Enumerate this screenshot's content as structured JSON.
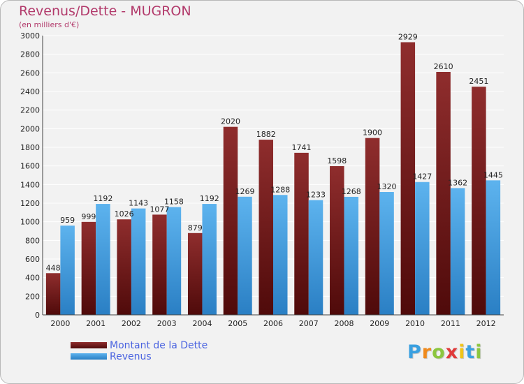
{
  "chart_data": {
    "type": "bar",
    "title": "Revenus/Dette - MUGRON",
    "subtitle": "(en milliers d'€)",
    "categories": [
      "2000",
      "2001",
      "2002",
      "2003",
      "2004",
      "2005",
      "2006",
      "2007",
      "2008",
      "2009",
      "2010",
      "2011",
      "2012"
    ],
    "series": [
      {
        "name": "Montant de la Dette",
        "color": "#7a1c1c",
        "values": [
          448,
          999,
          1026,
          1077,
          879,
          2020,
          1882,
          1741,
          1598,
          1900,
          2929,
          2610,
          2451
        ]
      },
      {
        "name": "Revenus",
        "color": "#3d9be0",
        "values": [
          959,
          1192,
          1143,
          1158,
          1192,
          1269,
          1288,
          1233,
          1268,
          1320,
          1427,
          1362,
          1445
        ]
      }
    ],
    "ylim": [
      0,
      3000
    ],
    "yticks": [
      0,
      200,
      400,
      600,
      800,
      1000,
      1200,
      1400,
      1600,
      1800,
      2000,
      2200,
      2400,
      2600,
      2800,
      3000
    ],
    "grid": true,
    "legend": "bottom-left"
  },
  "logo": {
    "letters": [
      "P",
      "r",
      "o",
      "x",
      "i",
      "t",
      "i"
    ],
    "colors": [
      "#3aa0e0",
      "#f08a1c",
      "#8cc63f",
      "#e03a3a",
      "#f0c419",
      "#3aa0e0",
      "#8cc63f"
    ]
  }
}
